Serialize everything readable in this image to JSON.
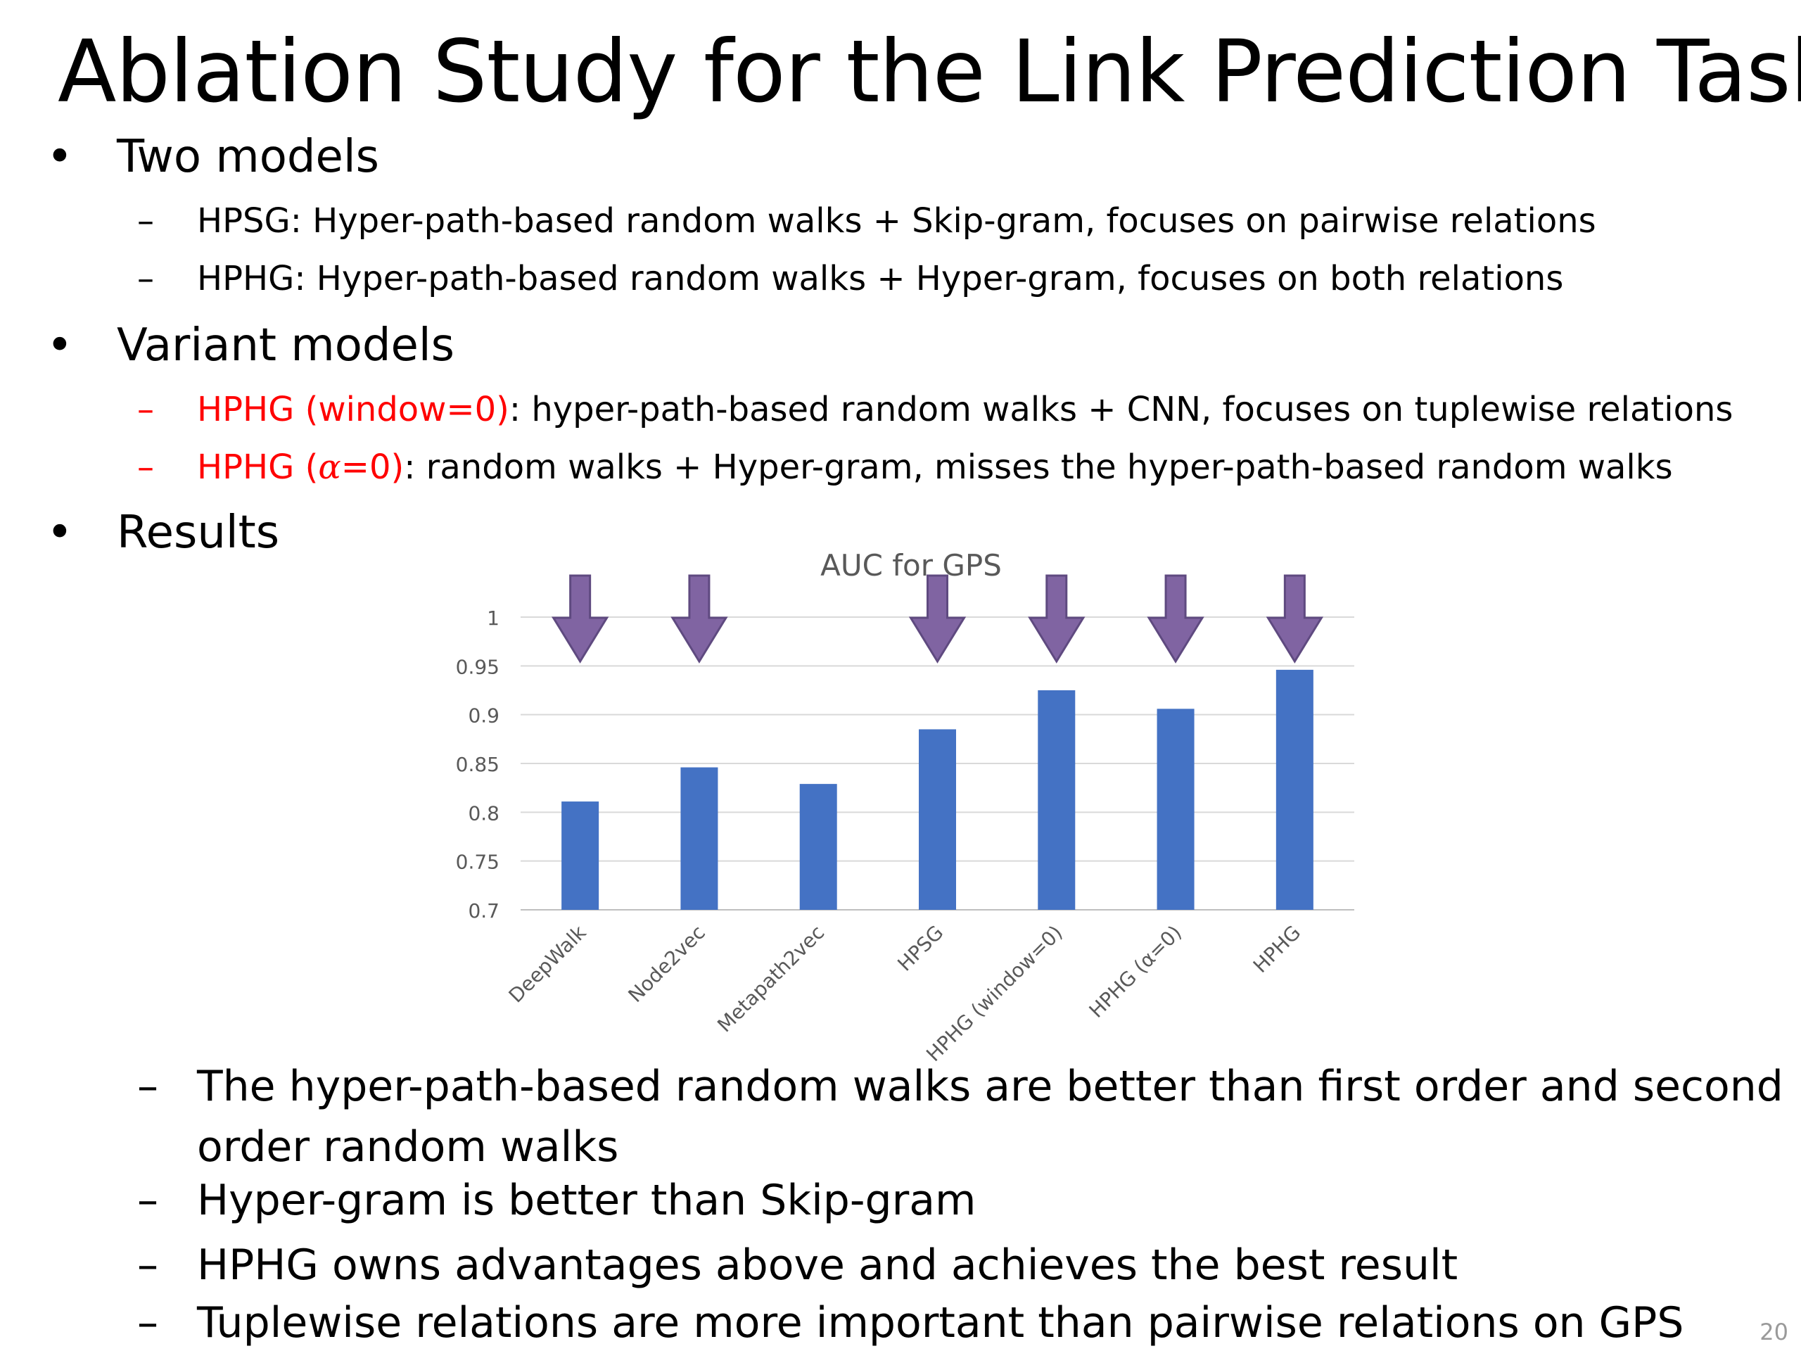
{
  "slide": {
    "title": "Ablation Study for the Link Prediction Task",
    "page_number": "20",
    "bullet_1": {
      "text": "Two models",
      "subs": [
        "HPSG: Hyper-path-based random walks + Skip-gram, focuses on pairwise relations",
        "HPHG: Hyper-path-based random walks + Hyper-gram, focuses on both relations"
      ]
    },
    "bullet_2": {
      "text": "Variant models",
      "subs": [
        {
          "red": "HPHG (window=0)",
          "rest": ": hyper-path-based random walks + CNN, focuses on tuplewise relations"
        },
        {
          "red_a": "HPHG (",
          "red_alpha": "α",
          "red_b": "=0)",
          "rest": ": random walks + Hyper-gram, misses the hyper-path-based random walks"
        }
      ]
    },
    "bullet_3": {
      "text": "Results",
      "subs": [
        "The hyper-path-based random walks are better than first order and second",
        "order random walks",
        "Hyper-gram is better than Skip-gram",
        "HPHG owns advantages above and achieves the best result",
        "Tuplewise relations are more important than pairwise relations on GPS"
      ]
    },
    "bullet_symbol": "•",
    "dash_symbol": "–"
  },
  "chart_data": {
    "type": "bar",
    "title": "AUC for GPS",
    "categories": [
      "DeepWalk",
      "Node2vec",
      "Metapath2vec",
      "HPSG",
      "HPHG (window=0)",
      "HPHG (α=0)",
      "HPHG"
    ],
    "values": [
      0.811,
      0.846,
      0.829,
      0.885,
      0.925,
      0.906,
      0.946
    ],
    "ylim": [
      0.7,
      1.0
    ],
    "yticks": [
      0.7,
      0.75,
      0.8,
      0.85,
      0.9,
      0.95,
      1
    ],
    "ytick_labels": [
      "0.7",
      "0.75",
      "0.8",
      "0.85",
      "0.9",
      "0.95",
      "1"
    ],
    "grid": true,
    "bar_color": "#4472c4",
    "arrow_color": "#8064a2",
    "arrows_on": [
      "DeepWalk",
      "Node2vec",
      "HPSG",
      "HPHG (window=0)",
      "HPHG (α=0)",
      "HPHG"
    ]
  }
}
